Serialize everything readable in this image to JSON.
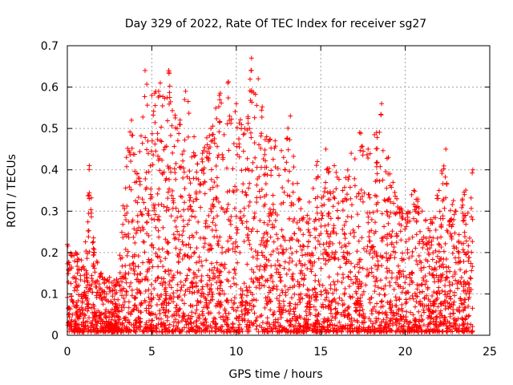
{
  "chart_data": {
    "type": "scatter",
    "title": "Day 329 of 2022, Rate Of TEC Index for receiver sg27",
    "xlabel": "GPS time / hours",
    "ylabel": "ROTI / TECUs",
    "xlim": [
      0,
      25
    ],
    "ylim": [
      0,
      0.7
    ],
    "xticks": [
      0,
      5,
      10,
      15,
      20,
      25
    ],
    "yticks": [
      0,
      0.1,
      0.2,
      0.3,
      0.4,
      0.5,
      0.6,
      0.7
    ],
    "grid": true,
    "marker": "+",
    "color": "#ff0000",
    "x_range_of_data": [
      0,
      24
    ],
    "envelope": [
      {
        "x": 0.0,
        "y": 0.22
      },
      {
        "x": 0.5,
        "y": 0.2
      },
      {
        "x": 1.0,
        "y": 0.16
      },
      {
        "x": 1.3,
        "y": 0.41
      },
      {
        "x": 1.6,
        "y": 0.2
      },
      {
        "x": 2.0,
        "y": 0.15
      },
      {
        "x": 2.5,
        "y": 0.14
      },
      {
        "x": 3.0,
        "y": 0.13
      },
      {
        "x": 3.5,
        "y": 0.43
      },
      {
        "x": 3.8,
        "y": 0.52
      },
      {
        "x": 4.2,
        "y": 0.38
      },
      {
        "x": 4.6,
        "y": 0.64
      },
      {
        "x": 5.0,
        "y": 0.58
      },
      {
        "x": 5.5,
        "y": 0.61
      },
      {
        "x": 6.0,
        "y": 0.64
      },
      {
        "x": 6.5,
        "y": 0.5
      },
      {
        "x": 7.0,
        "y": 0.59
      },
      {
        "x": 7.5,
        "y": 0.48
      },
      {
        "x": 8.0,
        "y": 0.44
      },
      {
        "x": 8.5,
        "y": 0.5
      },
      {
        "x": 9.0,
        "y": 0.58
      },
      {
        "x": 9.5,
        "y": 0.61
      },
      {
        "x": 10.0,
        "y": 0.56
      },
      {
        "x": 10.5,
        "y": 0.5
      },
      {
        "x": 10.9,
        "y": 0.67
      },
      {
        "x": 11.3,
        "y": 0.62
      },
      {
        "x": 11.8,
        "y": 0.48
      },
      {
        "x": 12.3,
        "y": 0.47
      },
      {
        "x": 12.8,
        "y": 0.43
      },
      {
        "x": 13.2,
        "y": 0.53
      },
      {
        "x": 13.7,
        "y": 0.33
      },
      {
        "x": 14.2,
        "y": 0.29
      },
      {
        "x": 14.8,
        "y": 0.42
      },
      {
        "x": 15.3,
        "y": 0.45
      },
      {
        "x": 15.8,
        "y": 0.41
      },
      {
        "x": 16.3,
        "y": 0.35
      },
      {
        "x": 16.8,
        "y": 0.44
      },
      {
        "x": 17.3,
        "y": 0.49
      },
      {
        "x": 17.8,
        "y": 0.45
      },
      {
        "x": 18.3,
        "y": 0.49
      },
      {
        "x": 18.6,
        "y": 0.56
      },
      {
        "x": 19.0,
        "y": 0.43
      },
      {
        "x": 19.5,
        "y": 0.33
      },
      {
        "x": 20.0,
        "y": 0.28
      },
      {
        "x": 20.5,
        "y": 0.35
      },
      {
        "x": 21.0,
        "y": 0.3
      },
      {
        "x": 21.5,
        "y": 0.28
      },
      {
        "x": 22.0,
        "y": 0.35
      },
      {
        "x": 22.4,
        "y": 0.45
      },
      {
        "x": 23.0,
        "y": 0.3
      },
      {
        "x": 23.5,
        "y": 0.34
      },
      {
        "x": 24.0,
        "y": 0.4
      }
    ]
  }
}
